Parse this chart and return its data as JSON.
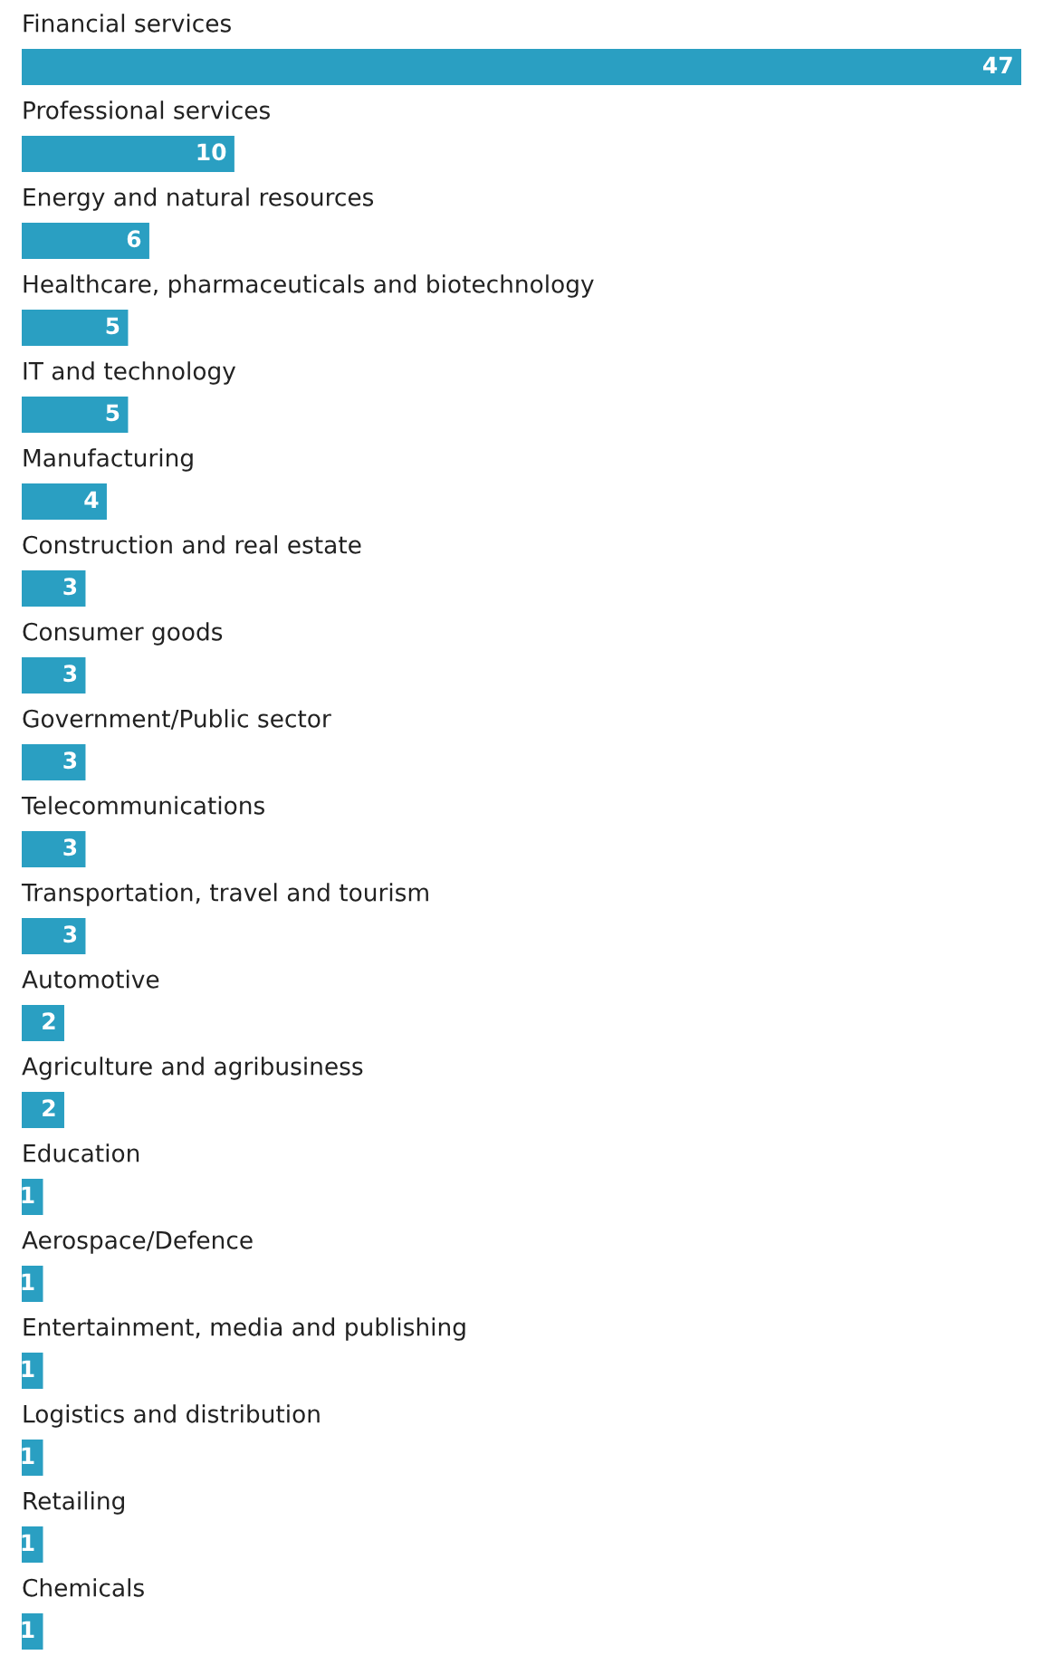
{
  "chart_data": {
    "type": "bar",
    "orientation": "horizontal",
    "data_labels": true,
    "color": "#2a9fc2",
    "categories": [
      "Financial services",
      "Professional services",
      "Energy and natural resources",
      "Healthcare, pharmaceuticals and biotechnology",
      "IT and technology",
      "Manufacturing",
      "Construction and real estate",
      "Consumer goods",
      "Government/Public sector",
      "Telecommunications",
      "Transportation, travel and tourism",
      "Automotive",
      "Agriculture and agribusiness",
      "Education",
      "Aerospace/Defence",
      "Entertainment, media and publishing",
      "Logistics and distribution",
      "Retailing",
      "Chemicals"
    ],
    "values": [
      47,
      10,
      6,
      5,
      5,
      4,
      3,
      3,
      3,
      3,
      3,
      2,
      2,
      1,
      1,
      1,
      1,
      1,
      1
    ]
  }
}
